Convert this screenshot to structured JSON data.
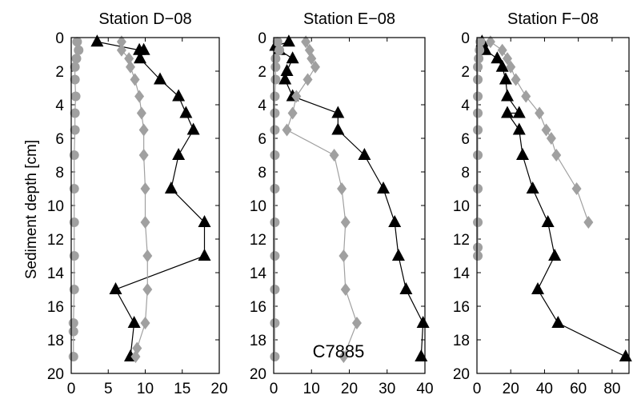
{
  "figure": {
    "ylabel": "Sediment depth [cm]",
    "annotation": "C7885"
  },
  "colors": {
    "black_series": "#000000",
    "gray_series": "#a0a0a0"
  },
  "chart_data": [
    {
      "type": "line",
      "title": "Station D−08",
      "xlim": [
        0,
        20
      ],
      "ylim": [
        0,
        20
      ],
      "y_reversed": true,
      "xticks": [
        "0",
        "5",
        "10",
        "15",
        "20"
      ],
      "yticks": [
        "0",
        "2",
        "4",
        "6",
        "8",
        "10",
        "12",
        "14",
        "16",
        "18",
        "20"
      ],
      "series": [
        {
          "marker": "triangle",
          "color": "#000000",
          "x": [
            3.5,
            9.2,
            9.8,
            9.3,
            12.0,
            14.5,
            15.5,
            16.5,
            14.5,
            13.5,
            18.0,
            18.0,
            6.0,
            8.5,
            8.0
          ],
          "y": [
            0.25,
            0.75,
            0.75,
            1.25,
            2.5,
            3.5,
            4.5,
            5.5,
            7.0,
            9.0,
            11.0,
            13.0,
            15.0,
            17.0,
            19.0
          ]
        },
        {
          "marker": "diamond",
          "color": "#a0a0a0",
          "x": [
            6.8,
            6.8,
            7.8,
            8.0,
            8.6,
            9.2,
            9.5,
            9.8,
            9.8,
            10.0,
            10.0,
            10.3,
            10.3,
            10.0,
            8.9,
            8.7
          ],
          "y": [
            0.25,
            0.75,
            1.25,
            1.75,
            2.5,
            3.5,
            4.5,
            5.5,
            7.0,
            9.0,
            11.0,
            13.0,
            15.0,
            17.0,
            18.5,
            19.0
          ]
        },
        {
          "marker": "circle",
          "color": "#a0a0a0",
          "x": [
            0.8,
            1.0,
            0.7,
            0.5,
            0.5,
            0.6,
            0.5,
            0.5,
            0.4,
            0.4,
            0.4,
            0.4,
            0.4,
            0.3,
            0.3,
            0.3
          ],
          "y": [
            0.25,
            0.75,
            1.25,
            1.75,
            2.5,
            3.5,
            4.5,
            5.5,
            7.0,
            9.0,
            11.0,
            13.0,
            15.0,
            17.0,
            17.5,
            19.0
          ]
        }
      ]
    },
    {
      "type": "line",
      "title": "Station E−08",
      "xlim": [
        0,
        40
      ],
      "ylim": [
        0,
        20
      ],
      "y_reversed": true,
      "xticks": [
        "0",
        "10",
        "20",
        "30",
        "40"
      ],
      "yticks": [
        "0",
        "2",
        "4",
        "6",
        "8",
        "10",
        "12",
        "14",
        "16",
        "18",
        "20"
      ],
      "series": [
        {
          "marker": "triangle",
          "color": "#000000",
          "x": [
            4.0,
            0.5,
            1.5,
            5.0,
            3.5,
            3.0,
            5.0,
            17.0,
            17.0,
            24.0,
            29.0,
            32.0,
            33.0,
            35.0,
            39.5,
            39.0
          ],
          "y": [
            0.25,
            0.5,
            0.75,
            1.25,
            2.0,
            2.5,
            3.5,
            4.5,
            5.5,
            7.0,
            9.0,
            11.0,
            13.0,
            15.0,
            17.0,
            19.0
          ]
        },
        {
          "marker": "diamond",
          "color": "#a0a0a0",
          "x": [
            8.5,
            9.5,
            10.0,
            11.0,
            9.0,
            6.0,
            5.0,
            3.5,
            16.0,
            18.0,
            19.0,
            18.5,
            19.0,
            22.0,
            18.5
          ],
          "y": [
            0.25,
            0.75,
            1.25,
            1.75,
            2.5,
            3.5,
            4.5,
            5.5,
            7.0,
            9.0,
            11.0,
            13.0,
            15.0,
            17.0,
            19.0
          ]
        },
        {
          "marker": "circle",
          "color": "#a0a0a0",
          "x": [
            1.0,
            1.5,
            0.5,
            0.5,
            0.5,
            0.3,
            0.3,
            0.3,
            0.3,
            0.3,
            0.3,
            0.3,
            0.3,
            0.3,
            0.3
          ],
          "y": [
            0.25,
            0.75,
            1.25,
            1.75,
            2.5,
            3.5,
            4.5,
            5.5,
            7.0,
            9.0,
            11.0,
            13.0,
            15.0,
            17.0,
            19.0
          ]
        }
      ]
    },
    {
      "type": "line",
      "title": "Station F−08",
      "xlim": [
        0,
        90
      ],
      "ylim": [
        0,
        20
      ],
      "y_reversed": true,
      "xticks": [
        "0",
        "20",
        "40",
        "60",
        "80"
      ],
      "yticks": [
        "0",
        "2",
        "4",
        "6",
        "8",
        "10",
        "12",
        "14",
        "16",
        "18",
        "20"
      ],
      "series": [
        {
          "marker": "triangle",
          "color": "#000000",
          "x": [
            3.0,
            5.0,
            12.0,
            15.0,
            17.0,
            18.0,
            25.0,
            18.0,
            25.0,
            27.0,
            33.0,
            42.0,
            46.0,
            36.0,
            48.0,
            88.0
          ],
          "y": [
            0.25,
            0.75,
            1.25,
            1.75,
            2.5,
            3.5,
            4.5,
            4.5,
            5.5,
            7.0,
            9.0,
            11.0,
            13.0,
            15.0,
            17.0,
            19.0
          ]
        },
        {
          "marker": "diamond",
          "color": "#a0a0a0",
          "x": [
            8.0,
            15.0,
            18.0,
            20.0,
            23.0,
            29.0,
            37.0,
            41.0,
            44.0,
            47.0,
            59.0,
            66.0
          ],
          "y": [
            0.25,
            0.75,
            1.25,
            1.75,
            2.5,
            3.5,
            4.5,
            5.5,
            6.0,
            7.0,
            9.0,
            11.0
          ]
        },
        {
          "marker": "circle",
          "color": "#a0a0a0",
          "x": [
            2.0,
            1.5,
            1.0,
            0.5,
            0.5,
            0.5,
            0.5,
            0.5,
            0.5,
            0.5,
            0.5,
            0.5,
            0.5
          ],
          "y": [
            0.25,
            0.75,
            1.25,
            1.75,
            2.5,
            3.5,
            4.5,
            5.5,
            7.0,
            9.0,
            11.0,
            12.5,
            13.0
          ]
        }
      ]
    }
  ]
}
